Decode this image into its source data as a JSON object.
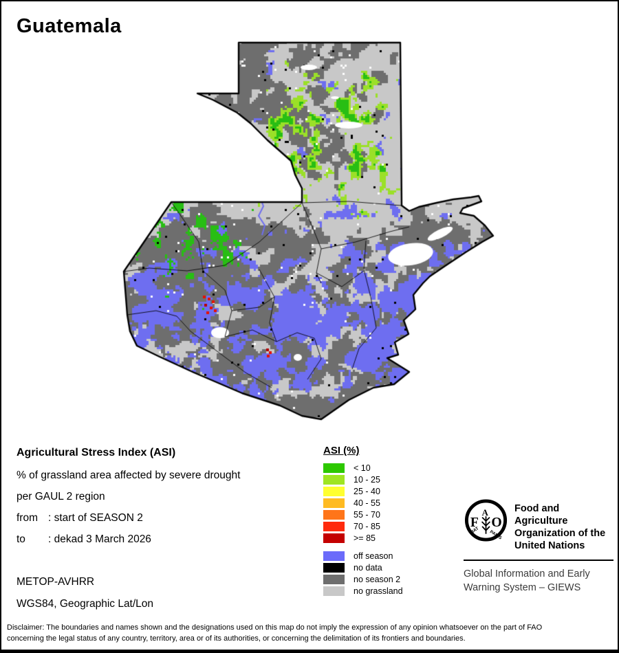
{
  "title": "Guatemala",
  "info": {
    "heading": "Agricultural Stress Index (ASI)",
    "line1": "% of grassland area affected by severe drought",
    "line2": "per GAUL 2 region",
    "from_label": "from",
    "from_value": ": start of SEASON 2",
    "to_label": "to",
    "to_value": ": dekad 3 March 2026",
    "sensor": "METOP-AVHRR",
    "projection": "WGS84, Geographic Lat/Lon"
  },
  "legend": {
    "heading": "ASI (%)",
    "asi_classes": [
      {
        "label": "< 10",
        "color": "#2DC800"
      },
      {
        "label": "10 - 25",
        "color": "#9FE522"
      },
      {
        "label": "25 - 40",
        "color": "#FFFF30"
      },
      {
        "label": "40 - 55",
        "color": "#FFBB22"
      },
      {
        "label": "55 - 70",
        "color": "#FF7519"
      },
      {
        "label": "70 - 85",
        "color": "#FF2A0D"
      },
      {
        "label": ">= 85",
        "color": "#C40000"
      }
    ],
    "other_classes": [
      {
        "label": "off season",
        "color": "#6B6BFA"
      },
      {
        "label": "no data",
        "color": "#000000"
      },
      {
        "label": "no season 2",
        "color": "#6E6E6E"
      },
      {
        "label": "no grassland",
        "color": "#C8C8C8"
      }
    ]
  },
  "map": {
    "palette": {
      "no_grassland": "#C8C8C8",
      "no_season": "#6E6E6E",
      "off_season": "#6E6EF0",
      "asi_low": "#28BE14",
      "asi_mid": "#9BE028",
      "asi_high": "#E61000",
      "asi_severe": "#B40000",
      "no_data": "#000000",
      "water": "#FFFFFF",
      "outline": "#000000"
    }
  },
  "footer": {
    "org_lines": [
      "Food and Agriculture",
      "Organization of the",
      "United Nations"
    ],
    "giews_lines": [
      "Global Information and Early",
      "Warning System – GIEWS"
    ],
    "emblem": {
      "letter_f": "F",
      "letter_a": "A",
      "letter_o": "O",
      "motto_left": "FIAT",
      "motto_right": "PANIS"
    }
  },
  "disclaimer_lines": [
    "Disclaimer: The boundaries and names shown and the designations used on this map do not imply the expression of any opinion whatsoever on the part of FAO",
    "concerning the legal status of any country, territory, area or of its authorities, or concerning the delimitation of its frontiers and boundaries."
  ]
}
